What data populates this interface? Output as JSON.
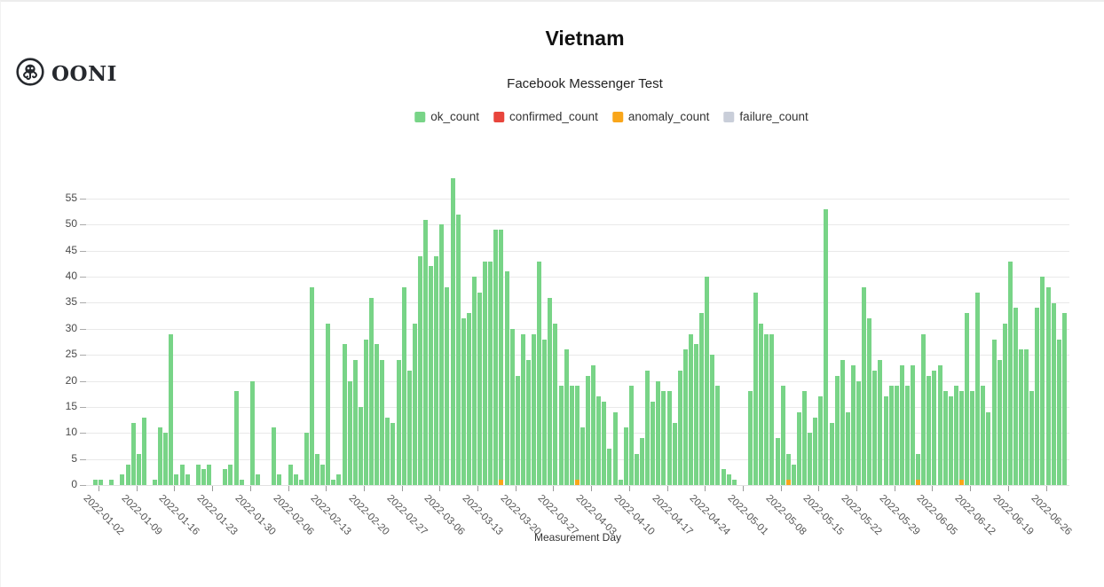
{
  "logo": {
    "text": "OONI",
    "icon": "ooni-octopus-icon"
  },
  "chart": {
    "title": "Vietnam",
    "subtitle": "Facebook Messenger Test",
    "xlabel": "Measurement Day",
    "legend": [
      {
        "label": "ok_count",
        "color": "#78d487"
      },
      {
        "label": "confirmed_count",
        "color": "#e8453c"
      },
      {
        "label": "anomaly_count",
        "color": "#f9a61a"
      },
      {
        "label": "failure_count",
        "color": "#c9ced9"
      }
    ]
  },
  "chart_data": {
    "type": "bar",
    "stacked": true,
    "title": "Vietnam",
    "subtitle": "Facebook Messenger Test",
    "xlabel": "Measurement Day",
    "ylabel": "",
    "x_unit": "day",
    "start_date": "2022-01-01",
    "end_date": "2022-06-29",
    "num_days": 180,
    "ylim": [
      0,
      59
    ],
    "y_ticks": [
      0,
      5,
      10,
      15,
      20,
      25,
      30,
      35,
      40,
      45,
      50,
      55
    ],
    "x_tick_labels": [
      "2022-01-02",
      "2022-01-09",
      "2022-01-16",
      "2022-01-23",
      "2022-01-30",
      "2022-02-06",
      "2022-02-13",
      "2022-02-20",
      "2022-02-27",
      "2022-03-06",
      "2022-03-13",
      "2022-03-20",
      "2022-03-27",
      "2022-04-03",
      "2022-04-10",
      "2022-04-17",
      "2022-04-24",
      "2022-05-01",
      "2022-05-08",
      "2022-05-15",
      "2022-05-22",
      "2022-05-29",
      "2022-06-05",
      "2022-06-12",
      "2022-06-19",
      "2022-06-26"
    ],
    "grid": true,
    "legend_position": "top",
    "series": [
      {
        "name": "ok_count",
        "color": "#78d487",
        "values": [
          1,
          1,
          0,
          1,
          0,
          2,
          4,
          12,
          6,
          13,
          0,
          1,
          11,
          10,
          29,
          2,
          4,
          2,
          0,
          4,
          3,
          4,
          0,
          0,
          3,
          4,
          18,
          1,
          0,
          20,
          2,
          0,
          0,
          11,
          2,
          0,
          4,
          2,
          1,
          10,
          38,
          6,
          4,
          31,
          1,
          2,
          27,
          20,
          24,
          15,
          28,
          36,
          27,
          24,
          13,
          12,
          24,
          38,
          22,
          31,
          44,
          51,
          42,
          44,
          50,
          38,
          59,
          52,
          32,
          33,
          40,
          37,
          43,
          43,
          49,
          48,
          41,
          30,
          21,
          29,
          24,
          29,
          43,
          28,
          36,
          31,
          19,
          26,
          19,
          18,
          11,
          21,
          23,
          17,
          16,
          7,
          14,
          1,
          11,
          19,
          6,
          9,
          22,
          16,
          20,
          18,
          18,
          12,
          22,
          26,
          29,
          27,
          33,
          40,
          25,
          19,
          3,
          2,
          1,
          0,
          0,
          18,
          37,
          31,
          29,
          29,
          9,
          19,
          5,
          4,
          14,
          18,
          10,
          13,
          17,
          53,
          12,
          21,
          24,
          14,
          23,
          20,
          38,
          32,
          22,
          24,
          17,
          19,
          19,
          23,
          19,
          23,
          5,
          29,
          21,
          22,
          23,
          18,
          17,
          19,
          17,
          33,
          18,
          37,
          19,
          14,
          28,
          24,
          31,
          43,
          34,
          26,
          26,
          18,
          34,
          40,
          38,
          35,
          28,
          33
        ]
      },
      {
        "name": "confirmed_count",
        "color": "#e8453c",
        "all_zero": true,
        "values": []
      },
      {
        "name": "anomaly_count",
        "color": "#f9a61a",
        "all_zero_except": {
          "2022-03-17": 1,
          "2022-03-31": 1,
          "2022-05-09": 1,
          "2022-06-02": 1,
          "2022-06-10": 1
        },
        "values": []
      },
      {
        "name": "failure_count",
        "color": "#c9ced9",
        "all_zero": true,
        "values": []
      }
    ]
  }
}
